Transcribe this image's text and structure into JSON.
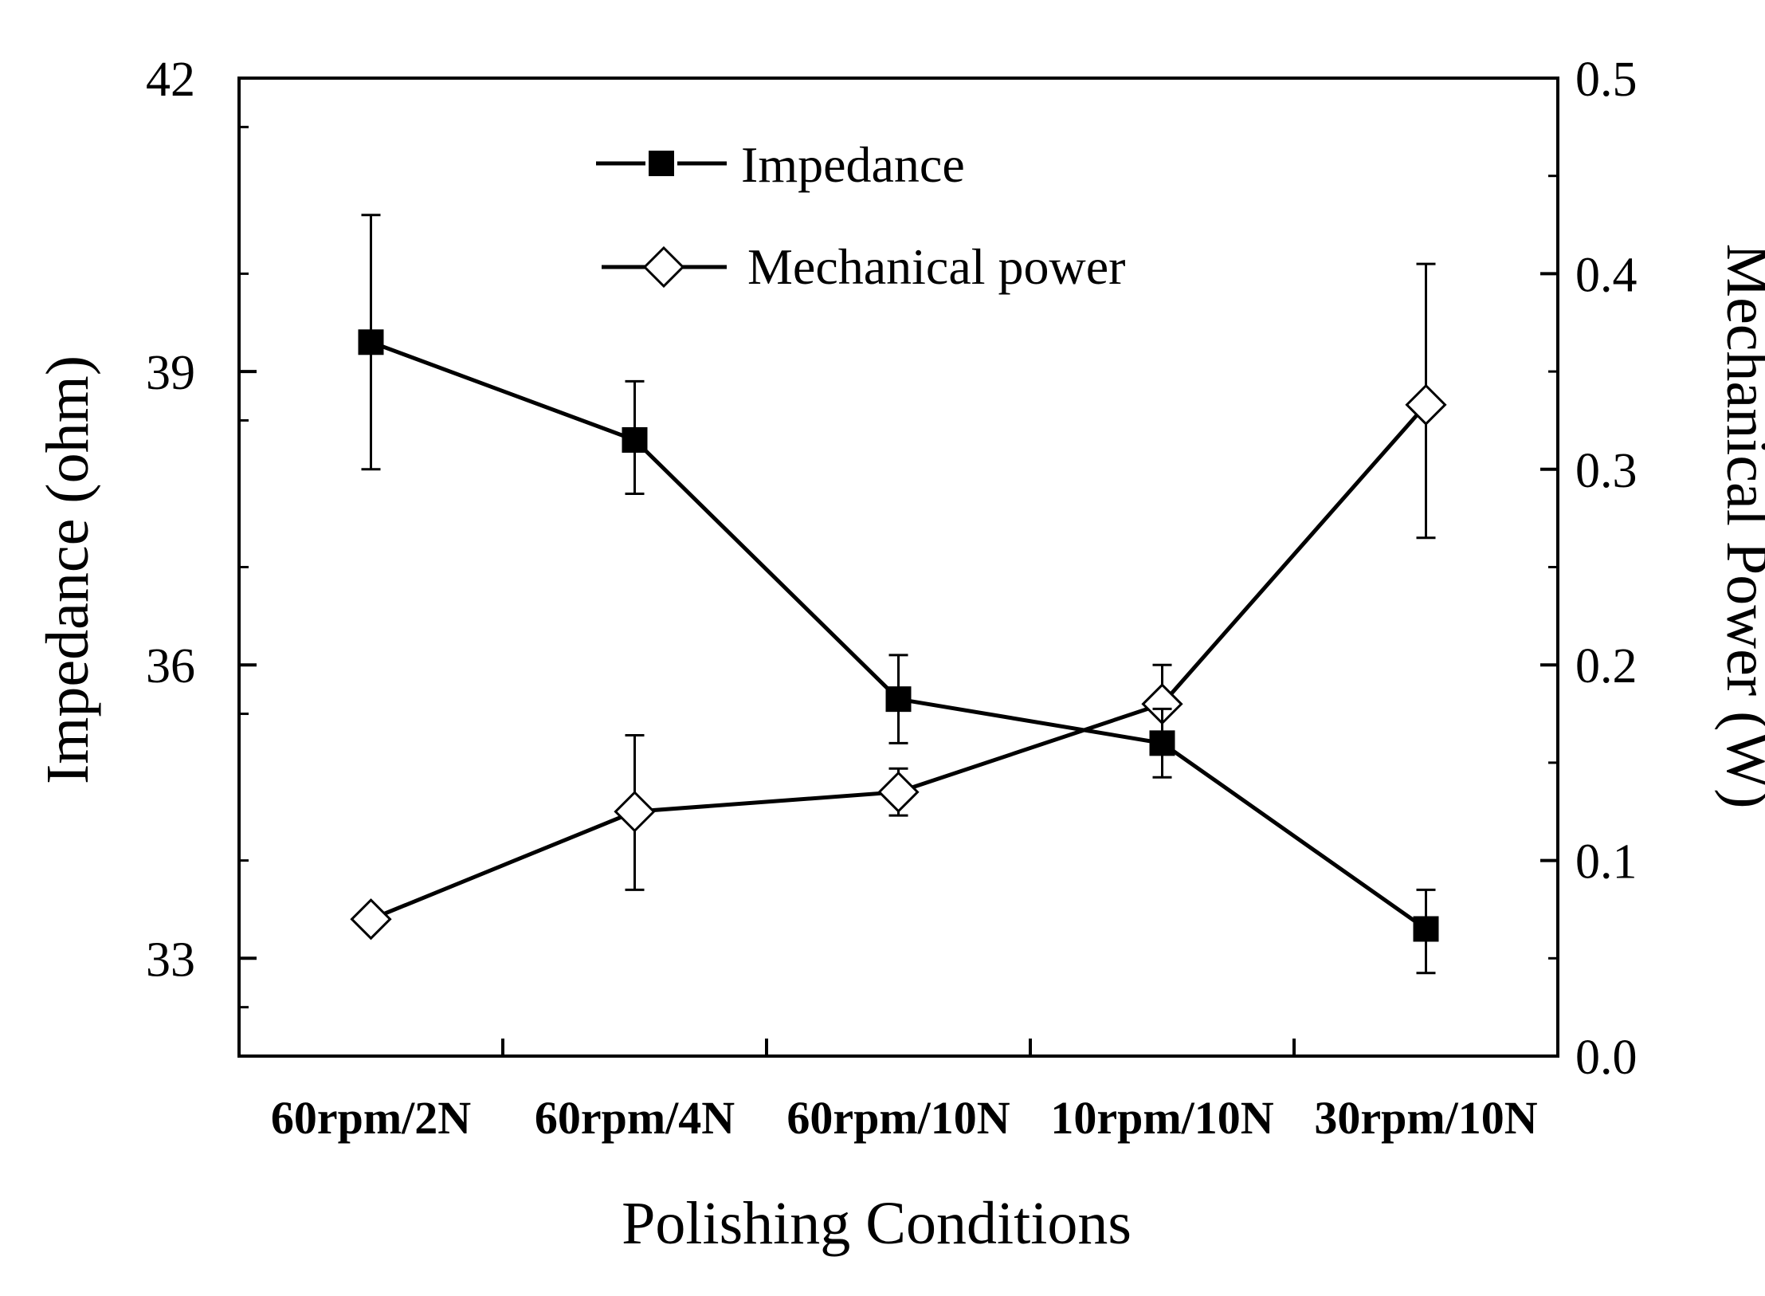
{
  "chart_data": {
    "type": "line",
    "xlabel": "Polishing Conditions",
    "categories": [
      "60rpm/2N",
      "60rpm/4N",
      "60rpm/10N",
      "10rpm/10N",
      "30rpm/10N"
    ],
    "y_left": {
      "label": "Impedance (ohm)",
      "range": [
        32,
        42
      ],
      "ticks": [
        "33",
        "36",
        "39",
        "42"
      ],
      "tick_values": [
        33,
        36,
        39,
        42
      ]
    },
    "y_right": {
      "label": "Mechanical Power (W)",
      "range": [
        0.0,
        0.5
      ],
      "ticks": [
        "0.0",
        "0.1",
        "0.2",
        "0.3",
        "0.4",
        "0.5"
      ],
      "tick_values": [
        0.0,
        0.1,
        0.2,
        0.3,
        0.4,
        0.5
      ]
    },
    "series": [
      {
        "name": "Impedance",
        "axis": "left",
        "marker": "filled-square",
        "values": [
          39.3,
          38.3,
          35.65,
          35.2,
          33.3
        ],
        "err_low": [
          38.0,
          37.75,
          35.2,
          34.85,
          32.85
        ],
        "err_high": [
          40.6,
          38.9,
          36.1,
          35.55,
          33.7
        ]
      },
      {
        "name": "Mechanical power",
        "axis": "right",
        "marker": "open-diamond",
        "values": [
          0.07,
          0.125,
          0.135,
          0.18,
          0.333
        ],
        "err_low": [
          0.065,
          0.085,
          0.123,
          0.16,
          0.265
        ],
        "err_high": [
          0.075,
          0.164,
          0.147,
          0.2,
          0.405
        ]
      }
    ],
    "legend_position": "top-center",
    "grid": false
  }
}
